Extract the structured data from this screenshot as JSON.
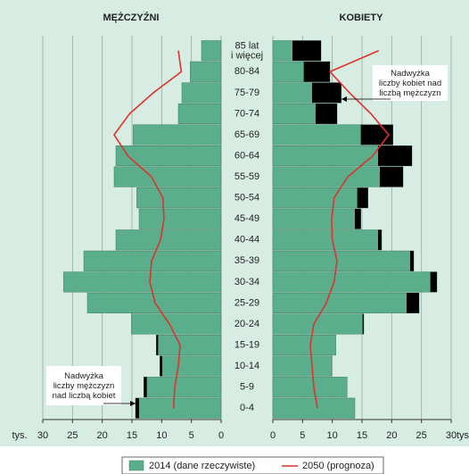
{
  "chart_data": {
    "type": "pyramid",
    "categories": [
      "0-4",
      "5-9",
      "10-14",
      "15-19",
      "20-24",
      "25-29",
      "30-34",
      "35-39",
      "40-44",
      "45-49",
      "50-54",
      "55-59",
      "60-64",
      "65-69",
      "70-74",
      "75-79",
      "80-84",
      "85 lat\ni więcej"
    ],
    "xlim": [
      0,
      30
    ],
    "xticks": [
      0,
      5,
      10,
      15,
      20,
      25,
      30
    ],
    "unit": "tys.",
    "grid": true,
    "series": [
      {
        "name": "2014 (dane rzeczywiste)",
        "color": "#5aae8c",
        "surplus_color": "#000000"
      },
      {
        "name": "2050 (prognoza)",
        "color": "#e0312b"
      }
    ],
    "sides": [
      {
        "title": "MĘŻCZYŹNI",
        "values": [
          14.4,
          13.0,
          10.3,
          10.9,
          15.1,
          22.5,
          26.5,
          23.1,
          17.7,
          13.8,
          14.2,
          18.0,
          17.7,
          14.8,
          7.2,
          6.6,
          5.2,
          3.3
        ],
        "forecast": [
          8.0,
          7.8,
          7.2,
          6.9,
          8.7,
          11.1,
          12.0,
          11.7,
          10.2,
          9.6,
          9.8,
          11.7,
          15.7,
          18.0,
          15.4,
          11.4,
          6.7,
          7.2
        ]
      },
      {
        "title": "KOBIETY",
        "values": [
          13.8,
          12.5,
          9.9,
          10.6,
          15.3,
          24.6,
          27.6,
          23.7,
          18.3,
          14.8,
          16.0,
          21.9,
          23.4,
          20.2,
          10.8,
          11.5,
          9.6,
          8.1
        ],
        "forecast": [
          7.5,
          6.9,
          6.6,
          6.3,
          6.9,
          9.0,
          10.3,
          10.8,
          10.0,
          9.9,
          10.3,
          12.6,
          16.8,
          19.5,
          16.5,
          12.9,
          9.6,
          17.8
        ]
      }
    ],
    "annotations": [
      {
        "text": "Nadwyżka\nliczby kobiet nad\nliczbą mężczyzn"
      },
      {
        "text": "Nadwyżka\nliczby mężczyzn\nnad liczbą kobiet"
      }
    ]
  }
}
